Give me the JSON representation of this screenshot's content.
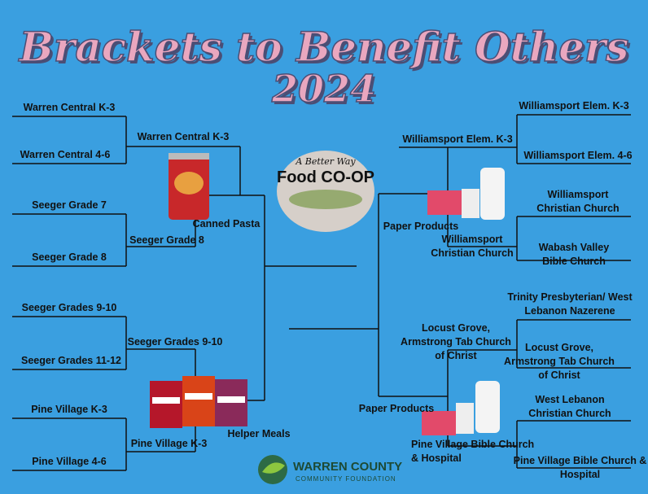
{
  "title": "Brackets to Benefit Others",
  "year": "2024",
  "left_bracket": {
    "round_1": [
      "Warren Central K-3",
      "Warren Central 4-6",
      "Seeger Grade 7",
      "Seeger Grade 8",
      "Seeger Grades 9-10",
      "Seeger Grades 11-12",
      "Pine Village K-3",
      "Pine Village 4-6"
    ],
    "round_2": [
      "Warren Central K-3",
      "Seeger Grade 8",
      "Seeger Grades 9-10",
      "Pine Village K-3"
    ]
  },
  "right_bracket": {
    "round_1": [
      "Williamsport Elem. K-3",
      "Williamsport Elem. 4-6",
      "Williamsport Christian Church",
      "Wabash Valley Bible Church",
      "Trinity Presbyterian/ West Lebanon Nazerene",
      "Locust Grove, Armstrong Tab Church of Christ",
      "West Lebanon Christian Church",
      "Pine Village Bible Church & Hospital"
    ],
    "round_2": [
      "Williamsport Elem. K-3",
      "Williamsport Christian Church",
      "Locust Grove, Armstrong Tab Church of Christ",
      "Pine Village Bible Church & Hospital"
    ]
  },
  "prizes": [
    "Canned Pasta",
    "Helper Meals",
    "Paper Products",
    "Paper Products"
  ],
  "logo": {
    "tagline": "A Better Way",
    "name": "Food CO-OP"
  },
  "foundation": {
    "name": "WARREN COUNTY",
    "subtitle": "COMMUNITY FOUNDATION"
  }
}
